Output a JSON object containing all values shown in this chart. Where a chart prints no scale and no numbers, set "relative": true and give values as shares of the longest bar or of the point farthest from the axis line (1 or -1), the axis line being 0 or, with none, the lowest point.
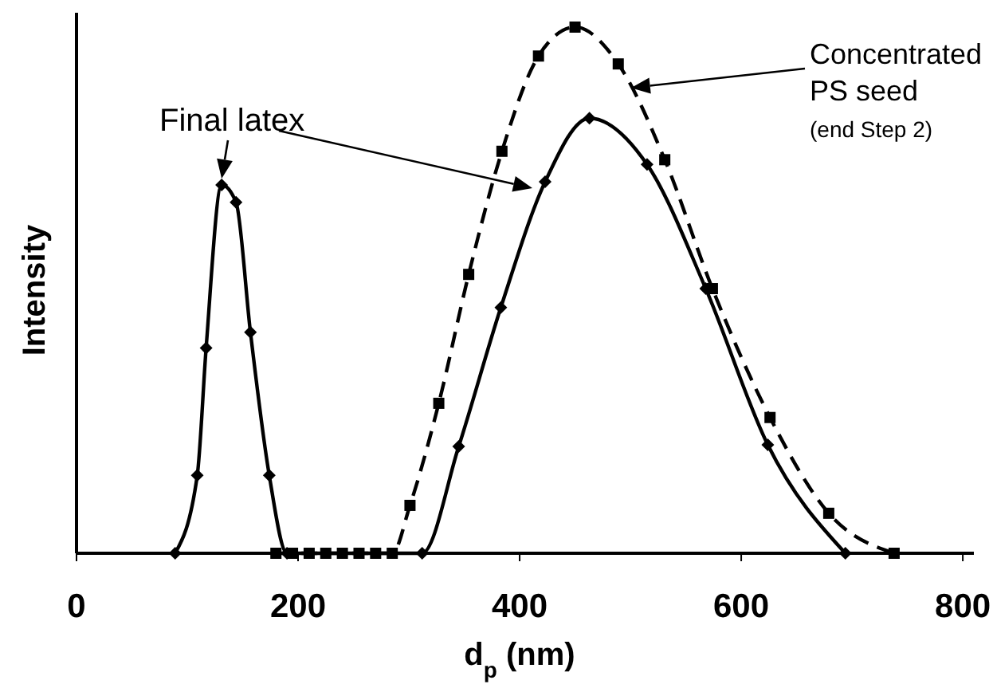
{
  "chart_data": {
    "type": "line",
    "relative": true,
    "xlabel": "d$_{p}$ (nm)",
    "ylabel": "Intensity",
    "xlim": [
      0,
      810
    ],
    "xticks": [
      0,
      200,
      400,
      600,
      800
    ],
    "annotations": [
      "Final latex",
      "Concentrated PS seed",
      "(end Step 2)"
    ],
    "series": [
      {
        "color": "#000000",
        "marker": "diamond",
        "line_style": "solid",
        "x": [
          89,
          109,
          117,
          131,
          144,
          157,
          174,
          190,
          312,
          345,
          383,
          423,
          463,
          515,
          568,
          624,
          694
        ],
        "values": [
          0,
          0.148,
          0.39,
          0.7,
          0.667,
          0.42,
          0.148,
          0,
          0,
          0.203,
          0.467,
          0.706,
          0.827,
          0.739,
          0.503,
          0.206,
          0
        ]
      },
      {
        "color": "#000000",
        "marker": "square",
        "line_style": "dashed",
        "x": [
          180,
          195,
          210,
          225,
          240,
          255,
          270,
          285,
          301,
          327,
          354,
          384,
          417,
          450,
          489,
          531,
          574,
          626,
          679,
          738
        ],
        "values": [
          0,
          0,
          0,
          0,
          0,
          0,
          0,
          0,
          0.091,
          0.285,
          0.53,
          0.764,
          0.945,
          1,
          0.93,
          0.748,
          0.503,
          0.258,
          0.076,
          0
        ]
      }
    ]
  }
}
